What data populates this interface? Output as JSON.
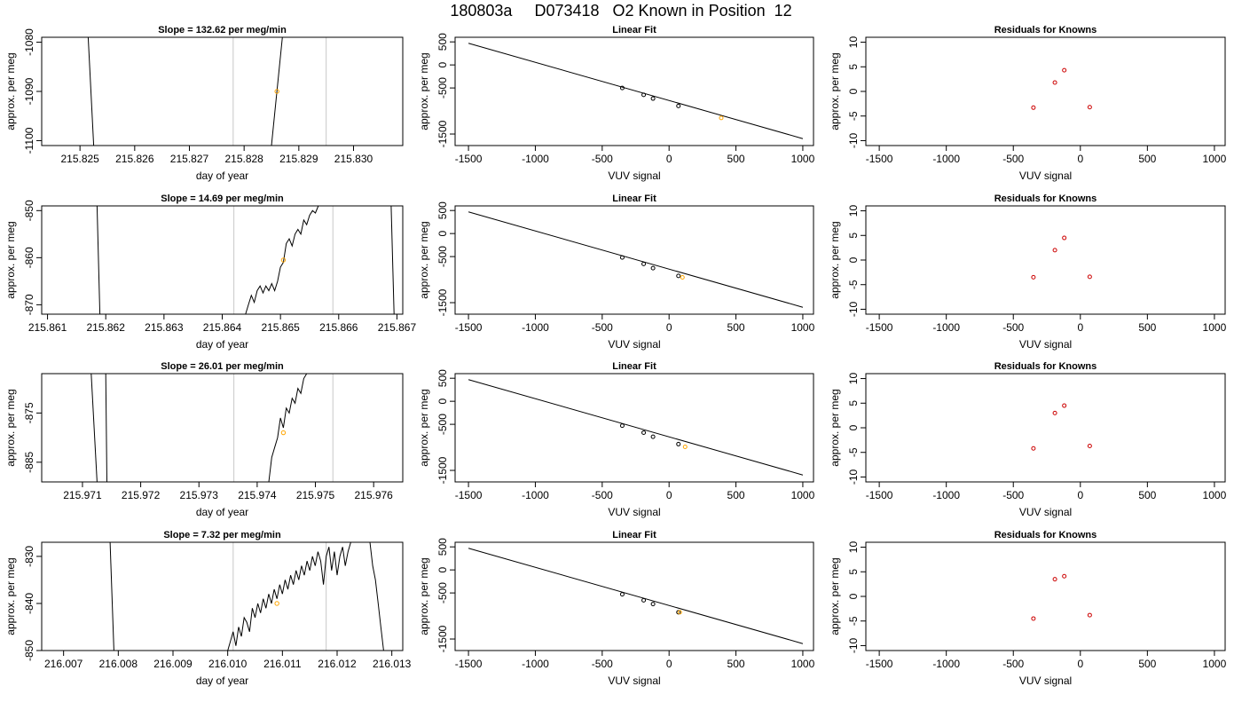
{
  "page": {
    "title": "180803a     D073418   O2 Known in Position  12"
  },
  "labels": {
    "slope_prefix": "Slope = ",
    "slope_suffix": "per meg/min",
    "linear_fit_title": "Linear Fit",
    "residuals_title": "Residuals for Knowns",
    "day_axis_label": "day of year",
    "vuv_axis_label": "VUV signal",
    "y_axis_label": "approx. per meg"
  },
  "colors": {
    "trace": "#000000",
    "window_line": "#c8c8c8",
    "sample_point": "#ffa500",
    "known_point": "#cc0000",
    "fit_line": "#000000"
  },
  "chart_data": [
    {
      "type": "line",
      "row": 1,
      "panel": "slope",
      "slope": "132.62",
      "title": "Slope =  132.62  per meg/min",
      "xlabel": "day of year",
      "ylabel": "approx. per meg",
      "xlim": [
        215.8243,
        215.8309
      ],
      "ylim": [
        -1101,
        -1079
      ],
      "xticks": [
        "215.825",
        "215.826",
        "215.827",
        "215.828",
        "215.829",
        "215.830"
      ],
      "yticks": [
        -1100,
        -1090,
        -1080
      ],
      "window_lines": [
        215.8278,
        215.8295
      ],
      "trace": [
        [
          215.82515,
          -1079
        ],
        [
          215.82525,
          -1101
        ]
      ],
      "trace2": [
        [
          215.8285,
          -1101
        ],
        [
          215.8287,
          -1079
        ]
      ],
      "sample_point": [
        215.8286,
        -1090
      ]
    },
    {
      "type": "line",
      "row": 2,
      "panel": "slope",
      "slope": "14.69",
      "title": "Slope =  14.69  per meg/min",
      "xlabel": "day of year",
      "ylabel": "approx. per meg",
      "xlim": [
        215.8609,
        215.8671
      ],
      "ylim": [
        -872,
        -849
      ],
      "xticks": [
        "215.861",
        "215.862",
        "215.863",
        "215.864",
        "215.865",
        "215.866",
        "215.867"
      ],
      "yticks": [
        -870,
        -860,
        -850
      ],
      "window_lines": [
        215.8642,
        215.8659
      ],
      "trace": [
        [
          215.86185,
          -849
        ],
        [
          215.8619,
          -872
        ]
      ],
      "trace2": [
        [
          215.8644,
          -872
        ],
        [
          215.86445,
          -870
        ],
        [
          215.8645,
          -868
        ],
        [
          215.86455,
          -869.5
        ],
        [
          215.8646,
          -867
        ],
        [
          215.86465,
          -866
        ],
        [
          215.8647,
          -867.5
        ],
        [
          215.86475,
          -866
        ],
        [
          215.8648,
          -867
        ],
        [
          215.86485,
          -865.5
        ],
        [
          215.8649,
          -867
        ],
        [
          215.86495,
          -865
        ],
        [
          215.865,
          -862
        ],
        [
          215.86505,
          -861
        ],
        [
          215.8651,
          -857
        ],
        [
          215.86515,
          -856
        ],
        [
          215.8652,
          -857.5
        ],
        [
          215.86525,
          -855
        ],
        [
          215.8653,
          -854
        ],
        [
          215.86535,
          -855
        ],
        [
          215.8654,
          -852
        ],
        [
          215.86545,
          -853
        ],
        [
          215.8655,
          -851
        ],
        [
          215.86555,
          -850
        ],
        [
          215.8656,
          -850.5
        ],
        [
          215.86565,
          -849
        ]
      ],
      "trace3": [
        [
          215.8669,
          -849
        ],
        [
          215.86695,
          -872
        ]
      ],
      "sample_point": [
        215.86505,
        -860.5
      ]
    },
    {
      "type": "line",
      "row": 3,
      "panel": "slope",
      "slope": "26.01",
      "title": "Slope =  26.01  per meg/min",
      "xlabel": "day of year",
      "ylabel": "approx. per meg",
      "xlim": [
        215.9703,
        215.9765
      ],
      "ylim": [
        -889,
        -867
      ],
      "xticks": [
        "215.971",
        "215.972",
        "215.973",
        "215.974",
        "215.975",
        "215.976"
      ],
      "yticks": [
        -885,
        -875
      ],
      "window_lines": [
        215.9736,
        215.9753
      ],
      "trace": [
        [
          215.97115,
          -867
        ],
        [
          215.97125,
          -889
        ]
      ],
      "trace1b": [
        [
          215.9714,
          -867
        ],
        [
          215.97142,
          -889
        ]
      ],
      "trace2": [
        [
          215.9742,
          -889
        ],
        [
          215.97425,
          -884
        ],
        [
          215.9743,
          -882
        ],
        [
          215.97435,
          -880
        ],
        [
          215.9744,
          -876
        ],
        [
          215.97445,
          -878
        ],
        [
          215.9745,
          -874
        ],
        [
          215.97455,
          -875
        ],
        [
          215.9746,
          -872
        ],
        [
          215.97465,
          -873
        ],
        [
          215.9747,
          -870
        ],
        [
          215.97475,
          -871
        ],
        [
          215.9748,
          -868
        ],
        [
          215.97485,
          -867
        ]
      ],
      "sample_point": [
        215.97445,
        -879
      ]
    },
    {
      "type": "line",
      "row": 4,
      "panel": "slope",
      "slope": "7.32",
      "title": "Slope =  7.32  per meg/min",
      "xlabel": "day of year",
      "ylabel": "approx. per meg",
      "xlim": [
        216.0066,
        216.0132
      ],
      "ylim": [
        -850,
        -827
      ],
      "xticks": [
        "216.007",
        "216.008",
        "216.009",
        "216.010",
        "216.011",
        "216.012",
        "216.013"
      ],
      "yticks": [
        -850,
        -840,
        -830
      ],
      "window_lines": [
        216.0101,
        216.0118
      ],
      "trace": [
        [
          216.00785,
          -827
        ],
        [
          216.00792,
          -850
        ]
      ],
      "trace2": [
        [
          216.01,
          -850
        ],
        [
          216.01005,
          -848
        ],
        [
          216.0101,
          -846
        ],
        [
          216.01015,
          -849
        ],
        [
          216.0102,
          -845
        ],
        [
          216.01025,
          -847
        ],
        [
          216.0103,
          -843
        ],
        [
          216.01035,
          -844
        ],
        [
          216.0104,
          -846
        ],
        [
          216.01045,
          -841
        ],
        [
          216.0105,
          -843
        ],
        [
          216.01055,
          -840
        ],
        [
          216.0106,
          -842
        ],
        [
          216.01065,
          -839
        ],
        [
          216.0107,
          -841
        ],
        [
          216.01075,
          -838
        ],
        [
          216.0108,
          -840
        ],
        [
          216.01085,
          -837
        ],
        [
          216.0109,
          -839
        ],
        [
          216.01095,
          -836
        ],
        [
          216.011,
          -838
        ],
        [
          216.01105,
          -835
        ],
        [
          216.0111,
          -837
        ],
        [
          216.01115,
          -834
        ],
        [
          216.0112,
          -836
        ],
        [
          216.01125,
          -833
        ],
        [
          216.0113,
          -835
        ],
        [
          216.01135,
          -832
        ],
        [
          216.0114,
          -834
        ],
        [
          216.01145,
          -831
        ],
        [
          216.0115,
          -833
        ],
        [
          216.01155,
          -830
        ],
        [
          216.0116,
          -832
        ],
        [
          216.01165,
          -829
        ],
        [
          216.0117,
          -831
        ],
        [
          216.01175,
          -836
        ],
        [
          216.0118,
          -830
        ],
        [
          216.01185,
          -828
        ],
        [
          216.0119,
          -833
        ],
        [
          216.01195,
          -829
        ],
        [
          216.012,
          -834
        ],
        [
          216.01205,
          -830
        ],
        [
          216.0121,
          -828
        ],
        [
          216.01215,
          -832
        ],
        [
          216.0122,
          -829
        ],
        [
          216.01225,
          -827
        ],
        [
          216.0126,
          -827
        ],
        [
          216.01265,
          -832
        ],
        [
          216.0127,
          -835
        ],
        [
          216.01275,
          -840
        ],
        [
          216.0128,
          -845
        ],
        [
          216.01285,
          -850
        ]
      ],
      "sample_point": [
        216.0109,
        -840
      ]
    },
    {
      "type": "scatter",
      "row": 1,
      "panel": "linear-fit",
      "title": "Linear Fit",
      "xlabel": "VUV signal",
      "ylabel": "approx. per meg",
      "xlim": [
        -1600,
        1080
      ],
      "ylim": [
        -1750,
        600
      ],
      "xticks": [
        -1500,
        -1000,
        -500,
        0,
        500,
        1000
      ],
      "yticks": [
        500,
        0,
        -500,
        -1500
      ],
      "fit_line": [
        [
          -1500,
          470
        ],
        [
          1000,
          -1600
        ]
      ],
      "knowns": [
        [
          -350,
          -500
        ],
        [
          -190,
          -650
        ],
        [
          -120,
          -730
        ],
        [
          70,
          -890
        ]
      ],
      "sample": [
        [
          390,
          -1150
        ]
      ]
    },
    {
      "type": "scatter",
      "row": 2,
      "panel": "linear-fit",
      "title": "Linear Fit",
      "xlabel": "VUV signal",
      "ylabel": "approx. per meg",
      "xlim": [
        -1600,
        1080
      ],
      "ylim": [
        -1750,
        600
      ],
      "xticks": [
        -1500,
        -1000,
        -500,
        0,
        500,
        1000
      ],
      "yticks": [
        500,
        0,
        -500,
        -1500
      ],
      "fit_line": [
        [
          -1500,
          470
        ],
        [
          1000,
          -1600
        ]
      ],
      "knowns": [
        [
          -350,
          -520
        ],
        [
          -190,
          -660
        ],
        [
          -120,
          -750
        ],
        [
          70,
          -920
        ]
      ],
      "sample": [
        [
          100,
          -950
        ]
      ]
    },
    {
      "type": "scatter",
      "row": 3,
      "panel": "linear-fit",
      "title": "Linear Fit",
      "xlabel": "VUV signal",
      "ylabel": "approx. per meg",
      "xlim": [
        -1600,
        1080
      ],
      "ylim": [
        -1750,
        600
      ],
      "xticks": [
        -1500,
        -1000,
        -500,
        0,
        500,
        1000
      ],
      "yticks": [
        500,
        0,
        -500,
        -1500
      ],
      "fit_line": [
        [
          -1500,
          470
        ],
        [
          1000,
          -1600
        ]
      ],
      "knowns": [
        [
          -350,
          -530
        ],
        [
          -190,
          -680
        ],
        [
          -120,
          -770
        ],
        [
          70,
          -930
        ]
      ],
      "sample": [
        [
          120,
          -990
        ]
      ]
    },
    {
      "type": "scatter",
      "row": 4,
      "panel": "linear-fit",
      "title": "Linear Fit",
      "xlabel": "VUV signal",
      "ylabel": "approx. per meg",
      "xlim": [
        -1600,
        1080
      ],
      "ylim": [
        -1750,
        600
      ],
      "xticks": [
        -1500,
        -1000,
        -500,
        0,
        500,
        1000
      ],
      "yticks": [
        500,
        0,
        -500,
        -1500
      ],
      "fit_line": [
        [
          -1500,
          470
        ],
        [
          1000,
          -1600
        ]
      ],
      "knowns": [
        [
          -350,
          -530
        ],
        [
          -190,
          -660
        ],
        [
          -120,
          -740
        ],
        [
          70,
          -920
        ]
      ],
      "sample": [
        [
          80,
          -920
        ]
      ]
    },
    {
      "type": "scatter",
      "row": 1,
      "panel": "residuals",
      "title": "Residuals for Knowns",
      "xlabel": "VUV signal",
      "ylabel": "approx. per meg",
      "xlim": [
        -1600,
        1080
      ],
      "ylim": [
        -11,
        11
      ],
      "xticks": [
        -1500,
        -1000,
        -500,
        0,
        500,
        1000
      ],
      "yticks": [
        10,
        5,
        0,
        -5,
        -10
      ],
      "knowns": [
        [
          -350,
          -3.3
        ],
        [
          -190,
          1.8
        ],
        [
          -120,
          4.3
        ],
        [
          70,
          -3.2
        ]
      ]
    },
    {
      "type": "scatter",
      "row": 2,
      "panel": "residuals",
      "title": "Residuals for Knowns",
      "xlabel": "VUV signal",
      "ylabel": "approx. per meg",
      "xlim": [
        -1600,
        1080
      ],
      "ylim": [
        -11,
        11
      ],
      "xticks": [
        -1500,
        -1000,
        -500,
        0,
        500,
        1000
      ],
      "yticks": [
        10,
        5,
        0,
        -5,
        -10
      ],
      "knowns": [
        [
          -350,
          -3.5
        ],
        [
          -190,
          2
        ],
        [
          -120,
          4.5
        ],
        [
          70,
          -3.4
        ]
      ]
    },
    {
      "type": "scatter",
      "row": 3,
      "panel": "residuals",
      "title": "Residuals for Knowns",
      "xlabel": "VUV signal",
      "ylabel": "approx. per meg",
      "xlim": [
        -1600,
        1080
      ],
      "ylim": [
        -11,
        11
      ],
      "xticks": [
        -1500,
        -1000,
        -500,
        0,
        500,
        1000
      ],
      "yticks": [
        10,
        5,
        0,
        -5,
        -10
      ],
      "knowns": [
        [
          -350,
          -4.2
        ],
        [
          -190,
          3
        ],
        [
          -120,
          4.5
        ],
        [
          70,
          -3.7
        ]
      ]
    },
    {
      "type": "scatter",
      "row": 4,
      "panel": "residuals",
      "title": "Residuals for Knowns",
      "xlabel": "VUV signal",
      "ylabel": "approx. per meg",
      "xlim": [
        -1600,
        1080
      ],
      "ylim": [
        -11,
        11
      ],
      "xticks": [
        -1500,
        -1000,
        -500,
        0,
        500,
        1000
      ],
      "yticks": [
        10,
        5,
        0,
        -5,
        -10
      ],
      "knowns": [
        [
          -350,
          -4.5
        ],
        [
          -190,
          3.5
        ],
        [
          -120,
          4.1
        ],
        [
          70,
          -3.8
        ]
      ]
    }
  ]
}
